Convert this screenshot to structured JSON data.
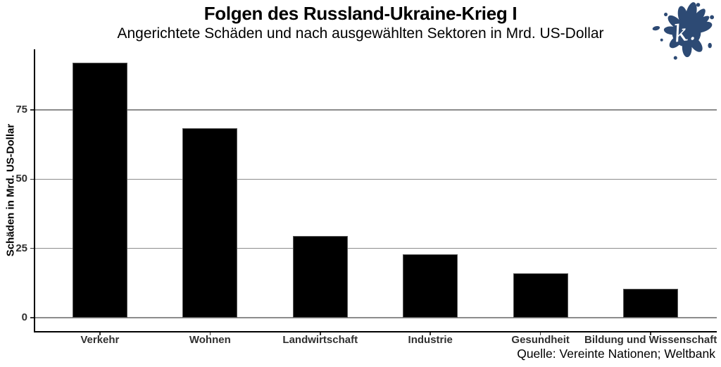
{
  "logo": {
    "letter": "k.",
    "color": "#2d4a74"
  },
  "caption": {
    "text": "Quelle: Vereinte Nationen; Weltbank"
  },
  "chart_data": {
    "type": "bar",
    "title": "Folgen des Russland-Ukraine-Krieg I",
    "subtitle": "Angerichtete Schäden und nach ausgewählten Sektoren in Mrd. US-Dollar",
    "categories": [
      "Verkehr",
      "Wohnen",
      "Landwirtschaft",
      "Industrie",
      "Gesundheit",
      "Bildung und Wissenschaft"
    ],
    "values": [
      92,
      68.5,
      29.5,
      23,
      16,
      10.5
    ],
    "xlabel": "",
    "ylabel": "Schäden in Mrd. US-Dollar",
    "yticks": [
      0,
      25,
      50,
      75
    ],
    "ylim": [
      -4.8,
      96.9
    ],
    "bar_color": "#000000",
    "bar_outline_color": "#595959",
    "grid": true,
    "grid_color": "#8c8c8c",
    "axis_color": "#000000",
    "legend": false
  }
}
